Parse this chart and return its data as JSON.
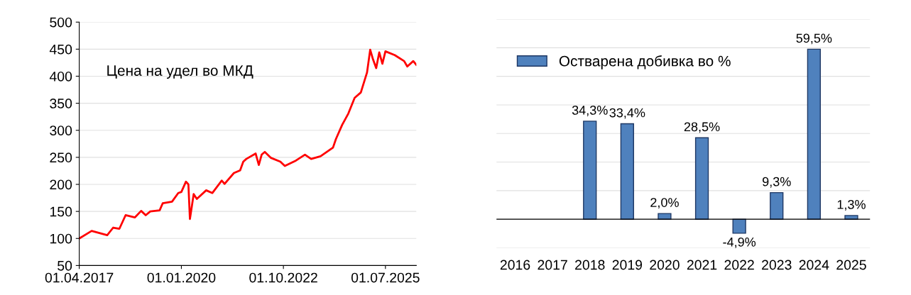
{
  "chart_data": [
    {
      "type": "line",
      "annotations": [
        "Цена на удел во МКД"
      ],
      "color": "#ff0000",
      "grid": "y",
      "legend": false,
      "x": [
        "2017-04-01",
        "2017-08-01",
        "2018-01-01",
        "2018-03-01",
        "2018-05-01",
        "2018-07-01",
        "2018-10-01",
        "2018-12-01",
        "2019-01-15",
        "2019-03-01",
        "2019-06-01",
        "2019-07-01",
        "2019-10-01",
        "2019-12-01",
        "2020-01-01",
        "2020-02-15",
        "2020-03-10",
        "2020-03-25",
        "2020-05-01",
        "2020-06-01",
        "2020-09-01",
        "2020-11-01",
        "2021-02-01",
        "2021-03-01",
        "2021-06-01",
        "2021-08-01",
        "2021-09-01",
        "2021-10-01",
        "2022-01-01",
        "2022-02-01",
        "2022-03-01",
        "2022-04-01",
        "2022-06-01",
        "2022-09-01",
        "2022-10-15",
        "2023-02-01",
        "2023-05-01",
        "2023-07-01",
        "2023-10-01",
        "2024-02-01",
        "2024-03-01",
        "2024-05-01",
        "2024-07-01",
        "2024-09-01",
        "2024-11-01",
        "2025-01-01",
        "2025-02-01",
        "2025-03-01",
        "2025-04-01",
        "2025-05-01",
        "2025-06-01",
        "2025-07-01",
        "2025-10-01",
        "2026-01-01",
        "2026-02-01",
        "2026-04-01",
        "2026-05-01"
      ],
      "values": [
        100,
        114,
        106,
        120,
        118,
        143,
        139,
        151,
        143,
        150,
        152,
        165,
        168,
        184,
        186,
        205,
        200,
        136,
        182,
        173,
        189,
        184,
        207,
        201,
        221,
        226,
        242,
        247,
        257,
        236,
        255,
        260,
        249,
        242,
        234,
        244,
        255,
        247,
        252,
        268,
        284,
        310,
        331,
        360,
        370,
        407,
        449,
        431,
        415,
        444,
        423,
        446,
        439,
        428,
        418,
        428,
        421
      ],
      "xlim": [
        "2017-04-01",
        "2026-05-01"
      ],
      "xticks": [
        {
          "value": "2017-04-01",
          "label": "01.04.2017"
        },
        {
          "value": "2020-01-01",
          "label": "01.01.2020"
        },
        {
          "value": "2022-10-01",
          "label": "01.10.2022"
        },
        {
          "value": "2025-07-01",
          "label": "01.07.2025"
        }
      ],
      "ylim": [
        50,
        500
      ],
      "yticks": [
        50,
        100,
        150,
        200,
        250,
        300,
        350,
        400,
        450,
        500
      ]
    },
    {
      "type": "bar",
      "categories": [
        "2016",
        "2017",
        "2018",
        "2019",
        "2020",
        "2021",
        "2022",
        "2023",
        "2024",
        "2025"
      ],
      "series": [
        {
          "name": "Остварена добивка во %",
          "color": "#4f81bd",
          "values": [
            null,
            null,
            34.3,
            33.4,
            2.0,
            28.5,
            -4.9,
            9.3,
            59.5,
            1.3
          ],
          "value_labels": [
            null,
            null,
            "34,3%",
            "33,4%",
            "2,0%",
            "28,5%",
            "-4,9%",
            "9,3%",
            "59,5%",
            "1,3%"
          ]
        }
      ],
      "ylim": [
        -10,
        70
      ],
      "yticks": [
        {
          "value": -10,
          "label": null
        },
        {
          "value": 0,
          "label": null
        },
        {
          "value": 10,
          "label": null
        },
        {
          "value": 20,
          "label": null
        },
        {
          "value": 30,
          "label": null
        },
        {
          "value": 40,
          "label": null
        },
        {
          "value": 50,
          "label": null
        },
        {
          "value": 60,
          "label": null
        },
        {
          "value": 70,
          "label": null
        }
      ],
      "tick_labels": "x",
      "grid": "y",
      "legend": "top left"
    }
  ]
}
